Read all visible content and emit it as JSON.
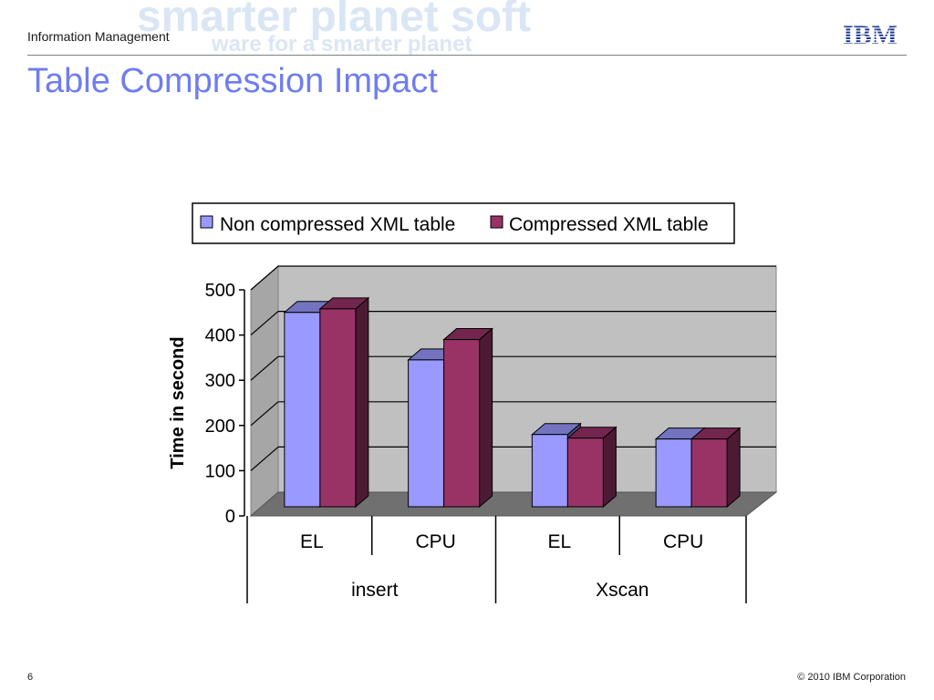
{
  "header": {
    "title": "Information Management",
    "watermark_line1": "smarter planet soft",
    "watermark_line2": "ware for a smarter planet"
  },
  "slide": {
    "title": "Table Compression Impact"
  },
  "logo": {
    "name": "ibm-logo",
    "text": "IBM",
    "color": "#1f3a93"
  },
  "chart_data": {
    "type": "bar",
    "ylabel": "Time in second",
    "ylim": [
      0,
      500
    ],
    "yticks": [
      0,
      100,
      200,
      300,
      400,
      500
    ],
    "categories": [
      "EL",
      "CPU",
      "EL",
      "CPU"
    ],
    "groups": [
      {
        "label": "insert",
        "span": 2
      },
      {
        "label": "Xscan",
        "span": 2
      }
    ],
    "series": [
      {
        "name": "Non compressed XML table",
        "color": "#9999ff",
        "values": [
          450,
          345,
          180,
          170
        ]
      },
      {
        "name": "Compressed XML table",
        "color": "#993366",
        "values": [
          458,
          390,
          172,
          170
        ]
      }
    ],
    "legend": "top",
    "grid": true,
    "style": "3d-clustered-column"
  },
  "footer": {
    "page_number": "6",
    "copyright": "© 2010 IBM Corporation"
  }
}
